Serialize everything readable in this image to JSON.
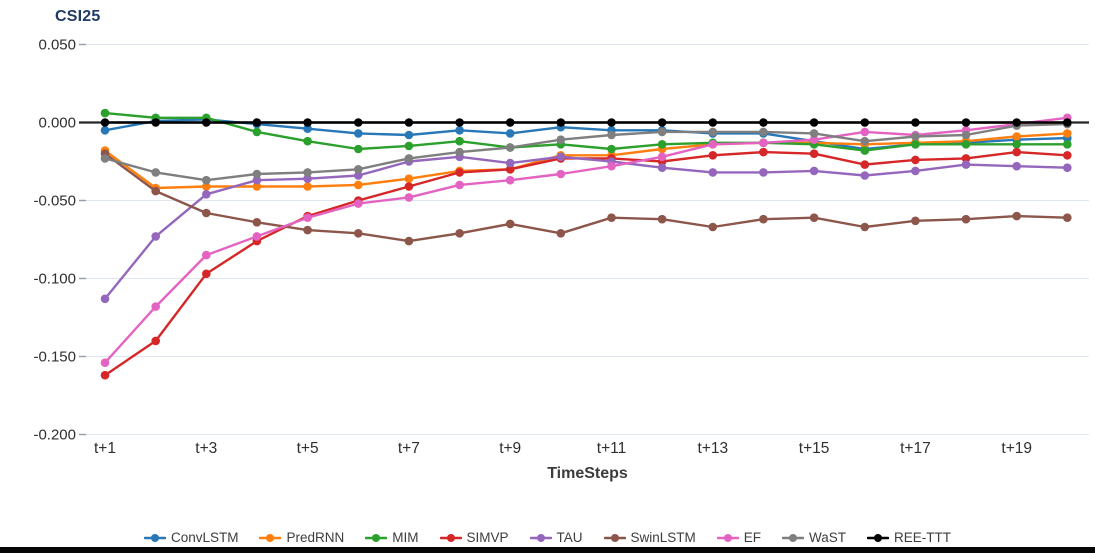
{
  "page": {
    "background": "#ffffff",
    "bottom_bar_color": "#060606"
  },
  "chart_data": {
    "type": "line",
    "title": "CSI25",
    "title_color": "#1f3b64",
    "xlabel": "TimeSteps",
    "ylabel": "",
    "categories": [
      "t+1",
      "t+2",
      "t+3",
      "t+4",
      "t+5",
      "t+6",
      "t+7",
      "t+8",
      "t+9",
      "t+10",
      "t+11",
      "t+12",
      "t+13",
      "t+14",
      "t+15",
      "t+16",
      "t+17",
      "t+18",
      "t+19",
      "t+20"
    ],
    "xtick_shown_indices": [
      0,
      2,
      4,
      6,
      8,
      10,
      12,
      14,
      16,
      18
    ],
    "xtick_labels_shown": [
      "t+1",
      "t+3",
      "t+5",
      "t+7",
      "t+9",
      "t+11",
      "t+13",
      "t+15",
      "t+17",
      "t+19"
    ],
    "yticks": [
      {
        "value": 0.05,
        "label": "0.050"
      },
      {
        "value": 0.0,
        "label": "0.000"
      },
      {
        "value": -0.05,
        "label": "-0.050"
      },
      {
        "value": -0.1,
        "label": "-0.100"
      },
      {
        "value": -0.15,
        "label": "-0.150"
      },
      {
        "value": -0.2,
        "label": "-0.200"
      }
    ],
    "ylim": [
      -0.2,
      0.05
    ],
    "grid": true,
    "zero_line": true,
    "legend_position": "bottom",
    "grid_color": "#dfe6ee",
    "axis_text_color": "#2f2f2f",
    "series": [
      {
        "name": "ConvLSTM",
        "color": "#2878b8",
        "values": [
          -0.005,
          0.001,
          0.002,
          -0.001,
          -0.004,
          -0.007,
          -0.008,
          -0.005,
          -0.007,
          -0.003,
          -0.005,
          -0.005,
          -0.007,
          -0.007,
          -0.012,
          -0.017,
          -0.014,
          -0.013,
          -0.011,
          -0.01
        ]
      },
      {
        "name": "PredRNN",
        "color": "#ff7f0e",
        "values": [
          -0.018,
          -0.042,
          -0.041,
          -0.041,
          -0.041,
          -0.04,
          -0.036,
          -0.031,
          -0.03,
          -0.021,
          -0.021,
          -0.017,
          -0.014,
          -0.013,
          -0.013,
          -0.014,
          -0.013,
          -0.012,
          -0.009,
          -0.007
        ]
      },
      {
        "name": "MIM",
        "color": "#2ca02c",
        "values": [
          0.006,
          0.003,
          0.003,
          -0.006,
          -0.012,
          -0.017,
          -0.015,
          -0.012,
          -0.016,
          -0.014,
          -0.017,
          -0.014,
          -0.013,
          -0.013,
          -0.014,
          -0.018,
          -0.014,
          -0.014,
          -0.014,
          -0.014
        ]
      },
      {
        "name": "SIMVP",
        "color": "#d62728",
        "values": [
          -0.162,
          -0.14,
          -0.097,
          -0.076,
          -0.06,
          -0.05,
          -0.041,
          -0.032,
          -0.03,
          -0.023,
          -0.023,
          -0.025,
          -0.021,
          -0.019,
          -0.02,
          -0.027,
          -0.024,
          -0.023,
          -0.019,
          -0.021
        ]
      },
      {
        "name": "TAU",
        "color": "#9467bd",
        "values": [
          -0.113,
          -0.073,
          -0.046,
          -0.037,
          -0.036,
          -0.034,
          -0.025,
          -0.022,
          -0.026,
          -0.022,
          -0.025,
          -0.029,
          -0.032,
          -0.032,
          -0.031,
          -0.034,
          -0.031,
          -0.027,
          -0.028,
          -0.029
        ]
      },
      {
        "name": "SwinLSTM",
        "color": "#8c564b",
        "values": [
          -0.02,
          -0.044,
          -0.058,
          -0.064,
          -0.069,
          -0.071,
          -0.076,
          -0.071,
          -0.065,
          -0.071,
          -0.061,
          -0.062,
          -0.067,
          -0.062,
          -0.061,
          -0.067,
          -0.063,
          -0.062,
          -0.06,
          -0.061
        ]
      },
      {
        "name": "EF",
        "color": "#e463c2",
        "values": [
          -0.154,
          -0.118,
          -0.085,
          -0.073,
          -0.061,
          -0.052,
          -0.048,
          -0.04,
          -0.037,
          -0.033,
          -0.028,
          -0.022,
          -0.014,
          -0.013,
          -0.011,
          -0.006,
          -0.008,
          -0.005,
          -0.001,
          0.003
        ]
      },
      {
        "name": "WaST",
        "color": "#7f7f7f",
        "values": [
          -0.023,
          -0.032,
          -0.037,
          -0.033,
          -0.032,
          -0.03,
          -0.023,
          -0.019,
          -0.016,
          -0.011,
          -0.008,
          -0.006,
          -0.006,
          -0.006,
          -0.007,
          -0.012,
          -0.009,
          -0.008,
          -0.002,
          -0.001
        ]
      },
      {
        "name": "REE-TTT",
        "color": "#000000",
        "values": [
          0.0,
          0.0,
          0.0,
          0.0,
          0.0,
          0.0,
          0.0,
          0.0,
          0.0,
          0.0,
          0.0,
          0.0,
          0.0,
          0.0,
          0.0,
          0.0,
          0.0,
          0.0,
          0.0,
          0.0
        ]
      }
    ]
  }
}
